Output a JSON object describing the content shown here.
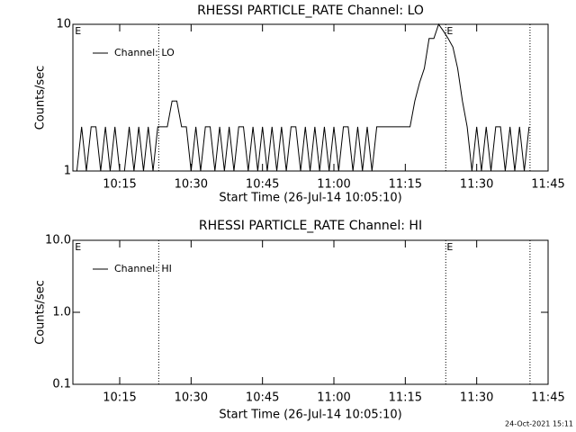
{
  "chart_data": [
    {
      "type": "line",
      "title": "RHESSI PARTICLE_RATE Channel: LO",
      "xlabel": "Start Time (26-Jul-14 10:05:10)",
      "ylabel": "Counts/sec",
      "log_y": true,
      "ylim": [
        1,
        10
      ],
      "yticks": [
        1,
        10
      ],
      "xlim": [
        605.1667,
        705
      ],
      "xticks": [
        {
          "value": 615,
          "label": "10:15"
        },
        {
          "value": 630,
          "label": "10:30"
        },
        {
          "value": 645,
          "label": "10:45"
        },
        {
          "value": 660,
          "label": "11:00"
        },
        {
          "value": 675,
          "label": "11:15"
        },
        {
          "value": 690,
          "label": "11:30"
        },
        {
          "value": 705,
          "label": "11:45"
        }
      ],
      "vlines": [
        623.2,
        683.5,
        701.2
      ],
      "annotations": [
        {
          "text": "E",
          "x": 605.6
        },
        {
          "text": "E",
          "x": 683.7
        }
      ],
      "x": [
        606,
        607,
        608,
        609,
        610,
        611,
        612,
        613,
        614,
        615,
        616,
        617,
        618,
        619,
        620,
        621,
        622,
        623,
        624,
        625,
        626,
        627,
        628,
        629,
        630,
        631,
        632,
        633,
        634,
        635,
        636,
        637,
        638,
        639,
        640,
        641,
        642,
        643,
        644,
        645,
        646,
        647,
        648,
        649,
        650,
        651,
        652,
        653,
        654,
        655,
        656,
        657,
        658,
        659,
        660,
        661,
        662,
        663,
        664,
        665,
        666,
        667,
        668,
        669,
        670,
        671,
        672,
        673,
        674,
        675,
        676,
        677,
        678,
        679,
        680,
        681,
        682,
        683,
        684,
        685,
        686,
        687,
        688,
        689,
        690,
        691,
        692,
        693,
        694,
        695,
        696,
        697,
        698,
        699,
        700,
        701
      ],
      "series": [
        {
          "name": "Channel: LO",
          "color": "#000000",
          "values": [
            1,
            2,
            1,
            2,
            2,
            1,
            2,
            1,
            2,
            1,
            1,
            2,
            1,
            2,
            1,
            2,
            1,
            2,
            2,
            2,
            3,
            3,
            2,
            2,
            1,
            2,
            1,
            2,
            2,
            1,
            2,
            1,
            2,
            1,
            2,
            2,
            1,
            2,
            1,
            2,
            1,
            2,
            1,
            2,
            1,
            2,
            2,
            1,
            2,
            1,
            2,
            1,
            2,
            1,
            2,
            1,
            2,
            2,
            1,
            2,
            1,
            2,
            1,
            2,
            2,
            2,
            2,
            2,
            2,
            2,
            2,
            3,
            4,
            5,
            8,
            8,
            10,
            9,
            8,
            7,
            5,
            3,
            2,
            1,
            2,
            1,
            2,
            1,
            2,
            2,
            1,
            2,
            1,
            2,
            1,
            2
          ]
        }
      ]
    },
    {
      "type": "line",
      "title": "RHESSI PARTICLE_RATE Channel: HI",
      "xlabel": "Start Time (26-Jul-14 10:05:10)",
      "ylabel": "Counts/sec",
      "log_y": true,
      "ylim": [
        0.1,
        10
      ],
      "yticks": [
        0.1,
        {
          "value": 1,
          "label": "1.0"
        },
        {
          "value": 10,
          "label": "10.0"
        }
      ],
      "xlim": [
        605.1667,
        705
      ],
      "xticks": [
        {
          "value": 615,
          "label": "10:15"
        },
        {
          "value": 630,
          "label": "10:30"
        },
        {
          "value": 645,
          "label": "10:45"
        },
        {
          "value": 660,
          "label": "11:00"
        },
        {
          "value": 675,
          "label": "11:15"
        },
        {
          "value": 690,
          "label": "11:30"
        },
        {
          "value": 705,
          "label": "11:45"
        }
      ],
      "vlines": [
        623.2,
        683.5,
        701.2
      ],
      "annotations": [
        {
          "text": "E",
          "x": 605.6
        },
        {
          "text": "E",
          "x": 683.7
        }
      ],
      "x": [],
      "series": [
        {
          "name": "Channel: HI",
          "color": "#000000",
          "values": []
        }
      ]
    }
  ],
  "timestamp": "24-Oct-2021 15:11"
}
